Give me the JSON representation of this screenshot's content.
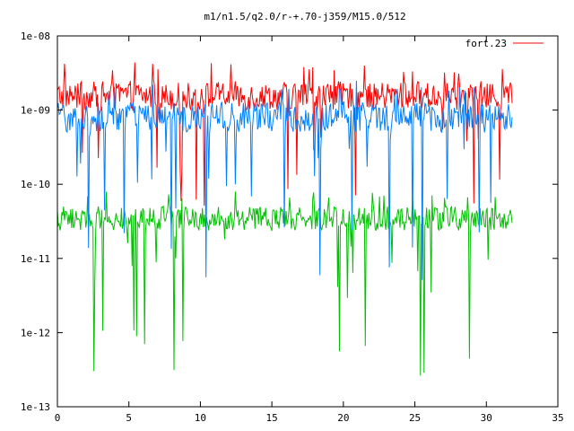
{
  "chart_data": {
    "type": "line",
    "title": "m1/n1.5/q2.0/r-+.70-j359/M15.0/512",
    "xlim": [
      0,
      35
    ],
    "ylim": [
      1e-13,
      1e-08
    ],
    "yscale": "log",
    "grid": false,
    "legend_position": "top-right",
    "x_ticks": [
      0,
      5,
      10,
      15,
      20,
      25,
      30,
      35
    ],
    "x_tick_labels": [
      "0",
      "5",
      "10",
      "15",
      "20",
      "25",
      "30",
      "35"
    ],
    "y_ticks": [
      1e-13,
      1e-12,
      1e-11,
      1e-10,
      1e-09,
      1e-08
    ],
    "y_tick_labels": [
      "1e-13",
      "1e-12",
      "1e-11",
      "1e-10",
      "1e-09",
      "1e-08"
    ],
    "series": [
      {
        "name": "fort.23",
        "color": "#ff0000",
        "x_range": [
          0,
          31.8
        ],
        "points": 512,
        "typical_range": [
          8e-10,
          3e-09
        ],
        "max": 4.5e-09,
        "min": 5e-11
      },
      {
        "color": "#0080ff",
        "x_range": [
          0,
          31.8
        ],
        "points": 512,
        "typical_range": [
          4e-10,
          1.6e-09
        ],
        "max": 2.5e-09,
        "min": 5e-12
      },
      {
        "color": "#00c000",
        "x_range": [
          0,
          31.8
        ],
        "points": 512,
        "typical_range": [
          2e-11,
          6e-11
        ],
        "max": 8e-11,
        "min": 2.5e-13
      }
    ]
  }
}
